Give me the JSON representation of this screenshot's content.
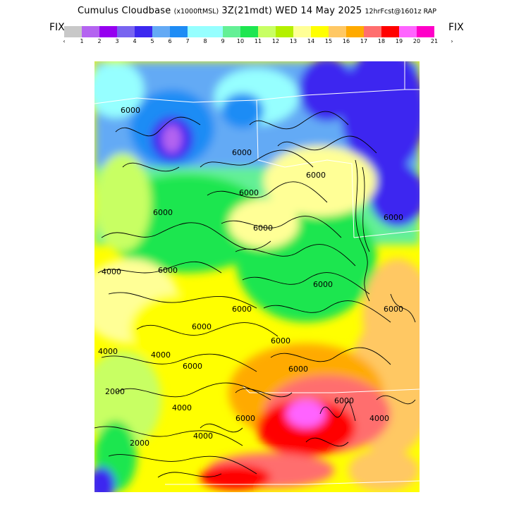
{
  "title": {
    "main": "Cumulus Cloudbase",
    "units": "(x1000ftMSL)",
    "valid": "3Z(21mdt) WED 14 May 2025",
    "model": "12hrFcst@1601z RAP"
  },
  "fix_left": "FIX",
  "fix_right": "FIX",
  "colorbar": {
    "colors": [
      "#c8c8c8",
      "#b464f0",
      "#9600f0",
      "#7864f0",
      "#3c28f0",
      "#64aaf5",
      "#1e8cf5",
      "#96ffff",
      "#96ffff",
      "#64f096",
      "#1ee650",
      "#c8ff64",
      "#b4f000",
      "#ffff96",
      "#ffff00",
      "#ffc864",
      "#ffaa00",
      "#ff6e6e",
      "#ff0000",
      "#ff64ff",
      "#ff00c8"
    ],
    "tick_labels": [
      "‹",
      "1",
      "2",
      "3",
      "4",
      "5",
      "6",
      "7",
      "8",
      "9",
      "10",
      "11",
      "12",
      "13",
      "14",
      "15",
      "16",
      "17",
      "18",
      "19",
      "20",
      "21",
      "›"
    ]
  },
  "map": {
    "contour_labels": [
      "6000",
      "6000",
      "6000",
      "6000",
      "6000",
      "6000",
      "6000",
      "6000",
      "6000",
      "6000",
      "6000",
      "6000",
      "4000",
      "4000",
      "4000",
      "4000",
      "4000",
      "4000",
      "2000",
      "2000",
      "6000",
      "6000",
      "6000",
      "6000",
      "6000"
    ]
  }
}
